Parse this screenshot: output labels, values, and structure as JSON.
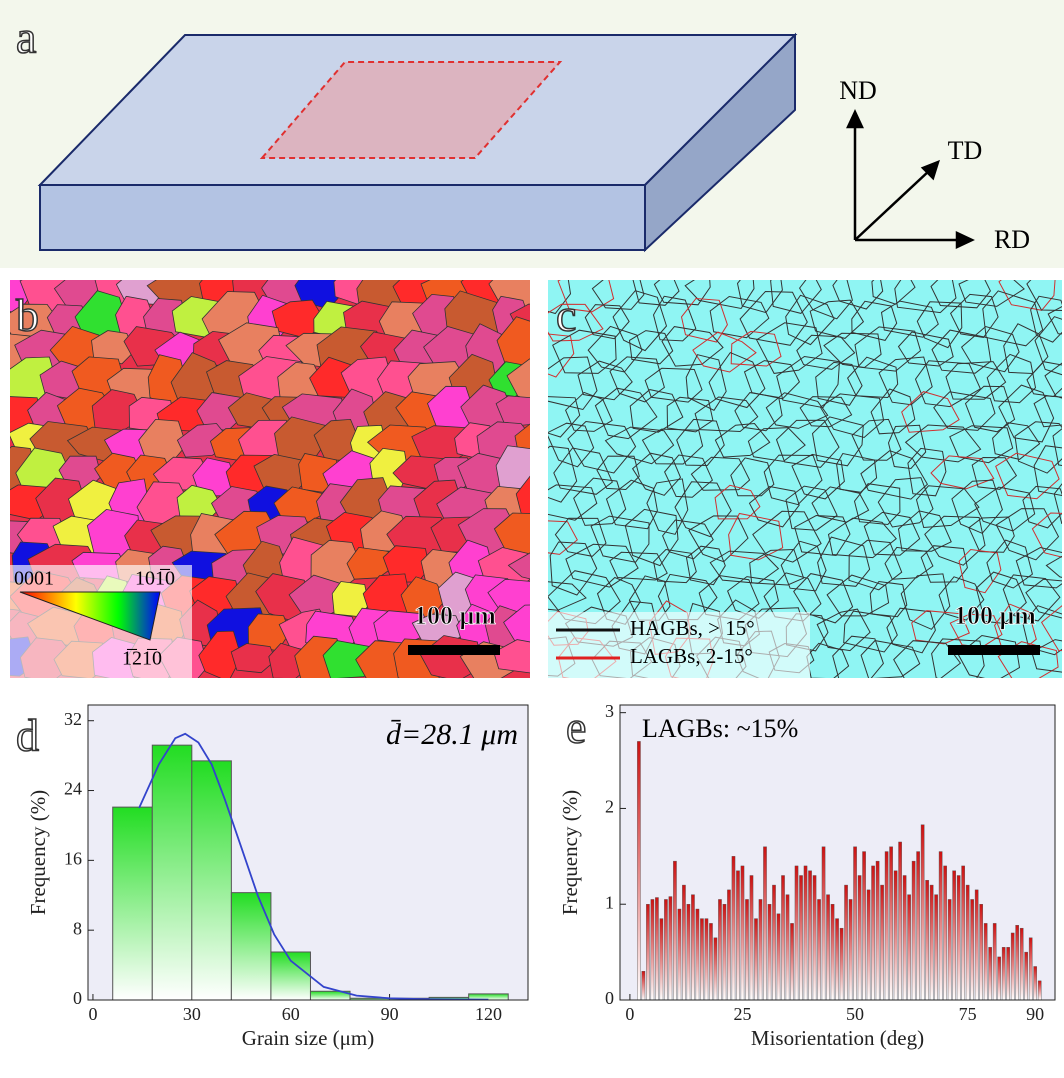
{
  "panel_labels": [
    "a",
    "b",
    "c",
    "d",
    "e"
  ],
  "axes_diagram": {
    "labels": [
      "ND",
      "TD",
      "RD"
    ]
  },
  "ipf_legend": {
    "labels": [
      "0001",
      "101̅0",
      "1̅21̅0"
    ]
  },
  "scale_bars": [
    "100 μm",
    "100 μm"
  ],
  "boundary_legend": {
    "labels": [
      "HAGBs, > 15°",
      "LAGBs, 2-15°"
    ],
    "colors": [
      "#111111",
      "#e02020"
    ]
  },
  "chart_data": [
    {
      "type": "histogram",
      "annotation": "d̄=28.1 μm",
      "x_label": "Grain size (μm)",
      "y_label": "Frequency (%)",
      "bins": [
        6,
        18,
        30,
        42,
        54,
        66,
        78,
        90,
        102,
        114,
        126
      ],
      "values": [
        22.1,
        29.2,
        27.4,
        12.3,
        5.5,
        1.0,
        0.2,
        0.2,
        0.3,
        0.7
      ],
      "color": "#22dd22",
      "fit": {
        "color": "#3344cc",
        "x": [
          14,
          20,
          25,
          28,
          32,
          36,
          40,
          45,
          50,
          55,
          60,
          70,
          80,
          90,
          100,
          120
        ],
        "values": [
          22,
          27,
          30,
          30.5,
          29.5,
          27,
          23,
          17.5,
          12,
          7.5,
          4.5,
          1.5,
          0.5,
          0.2,
          0.1,
          0.05
        ]
      },
      "xlim": [
        -1.5,
        132
      ],
      "ylim": [
        0,
        33.8
      ],
      "xticks": [
        0,
        30,
        60,
        90,
        120
      ],
      "yticks": [
        0,
        8,
        16,
        24,
        32
      ]
    },
    {
      "type": "bar",
      "annotation": "LAGBs: ~15%",
      "x_label": "Misorientation (deg)",
      "y_label": "Frequency (%)",
      "x": [
        2,
        3,
        4,
        5,
        6,
        7,
        8,
        9,
        10,
        11,
        12,
        13,
        14,
        15,
        16,
        17,
        18,
        19,
        20,
        21,
        22,
        23,
        24,
        25,
        26,
        27,
        28,
        29,
        30,
        31,
        32,
        33,
        34,
        35,
        36,
        37,
        38,
        39,
        40,
        41,
        42,
        43,
        44,
        45,
        46,
        47,
        48,
        49,
        50,
        51,
        52,
        53,
        54,
        55,
        56,
        57,
        58,
        59,
        60,
        61,
        62,
        63,
        64,
        65,
        66,
        67,
        68,
        69,
        70,
        71,
        72,
        73,
        74,
        75,
        76,
        77,
        78,
        79,
        80,
        81,
        82,
        83,
        84,
        85,
        86,
        87,
        88,
        89,
        90,
        91
      ],
      "values": [
        2.7,
        0.3,
        1.0,
        1.05,
        1.07,
        0.85,
        1.05,
        1.08,
        1.45,
        0.95,
        1.2,
        1.0,
        1.1,
        0.95,
        0.85,
        0.85,
        0.8,
        0.65,
        1.05,
        1.0,
        1.15,
        1.5,
        1.35,
        1.4,
        1.05,
        1.3,
        0.85,
        1.05,
        1.6,
        1.0,
        1.2,
        0.9,
        1.3,
        1.1,
        0.8,
        1.4,
        1.3,
        1.4,
        1.35,
        1.3,
        1.05,
        1.6,
        1.1,
        1.0,
        0.85,
        0.75,
        1.2,
        1.05,
        1.6,
        1.3,
        1.55,
        1.15,
        1.4,
        1.45,
        1.2,
        1.55,
        1.6,
        1.35,
        1.65,
        1.3,
        1.1,
        1.45,
        1.55,
        1.83,
        1.25,
        1.2,
        1.1,
        1.55,
        1.4,
        1.05,
        1.35,
        1.3,
        1.4,
        1.2,
        1.05,
        1.15,
        1.0,
        0.8,
        0.55,
        0.8,
        0.45,
        0.55,
        0.55,
        0.7,
        0.78,
        0.75,
        0.5,
        0.65,
        0.35,
        0.2
      ],
      "color": "#cc1111",
      "xlim": [
        -2.2,
        94.4
      ],
      "ylim": [
        0,
        3.08
      ],
      "xticks": [
        0,
        25,
        50,
        75,
        90
      ],
      "yticks": [
        0,
        1,
        2,
        3
      ]
    }
  ]
}
